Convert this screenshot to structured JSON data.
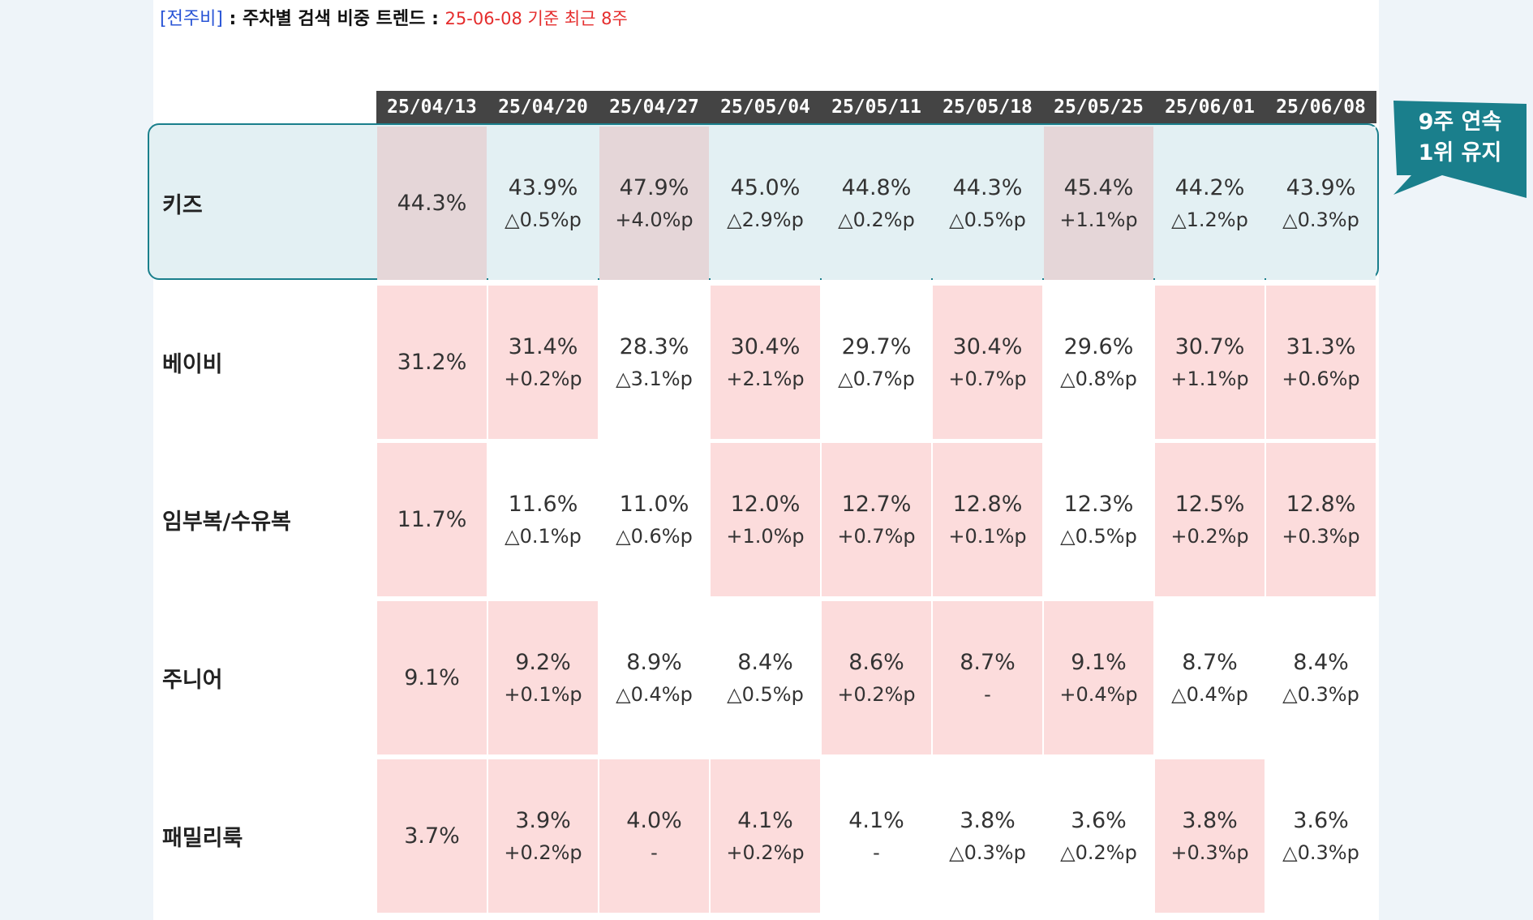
{
  "heading": {
    "tag": "[전주비]",
    "sep1": " : ",
    "title": "주차별 검색 비중 트렌드",
    "sep2": " : ",
    "basis": "25-06-08 기준 최근 8주"
  },
  "columns": [
    "25/04/13",
    "25/04/20",
    "25/04/27",
    "25/05/04",
    "25/05/11",
    "25/05/18",
    "25/05/25",
    "25/06/01",
    "25/06/08"
  ],
  "rows": [
    {
      "label": "키즈",
      "cells": [
        {
          "pct": "44.3%",
          "chg": ""
        },
        {
          "pct": "43.9%",
          "chg": "△0.5%p"
        },
        {
          "pct": "47.9%",
          "chg": "+4.0%p"
        },
        {
          "pct": "45.0%",
          "chg": "△2.9%p"
        },
        {
          "pct": "44.8%",
          "chg": "△0.2%p"
        },
        {
          "pct": "44.3%",
          "chg": "△0.5%p"
        },
        {
          "pct": "45.4%",
          "chg": "+1.1%p"
        },
        {
          "pct": "44.2%",
          "chg": "△1.2%p"
        },
        {
          "pct": "43.9%",
          "chg": "△0.3%p"
        }
      ]
    },
    {
      "label": "베이비",
      "cells": [
        {
          "pct": "31.2%",
          "chg": ""
        },
        {
          "pct": "31.4%",
          "chg": "+0.2%p"
        },
        {
          "pct": "28.3%",
          "chg": "△3.1%p"
        },
        {
          "pct": "30.4%",
          "chg": "+2.1%p"
        },
        {
          "pct": "29.7%",
          "chg": "△0.7%p"
        },
        {
          "pct": "30.4%",
          "chg": "+0.7%p"
        },
        {
          "pct": "29.6%",
          "chg": "△0.8%p"
        },
        {
          "pct": "30.7%",
          "chg": "+1.1%p"
        },
        {
          "pct": "31.3%",
          "chg": "+0.6%p"
        }
      ]
    },
    {
      "label": "임부복/수유복",
      "cells": [
        {
          "pct": "11.7%",
          "chg": ""
        },
        {
          "pct": "11.6%",
          "chg": "△0.1%p"
        },
        {
          "pct": "11.0%",
          "chg": "△0.6%p"
        },
        {
          "pct": "12.0%",
          "chg": "+1.0%p"
        },
        {
          "pct": "12.7%",
          "chg": "+0.7%p"
        },
        {
          "pct": "12.8%",
          "chg": "+0.1%p"
        },
        {
          "pct": "12.3%",
          "chg": "△0.5%p"
        },
        {
          "pct": "12.5%",
          "chg": "+0.2%p"
        },
        {
          "pct": "12.8%",
          "chg": "+0.3%p"
        }
      ]
    },
    {
      "label": "주니어",
      "cells": [
        {
          "pct": "9.1%",
          "chg": ""
        },
        {
          "pct": "9.2%",
          "chg": "+0.1%p"
        },
        {
          "pct": "8.9%",
          "chg": "△0.4%p"
        },
        {
          "pct": "8.4%",
          "chg": "△0.5%p"
        },
        {
          "pct": "8.6%",
          "chg": "+0.2%p"
        },
        {
          "pct": "8.7%",
          "chg": "-"
        },
        {
          "pct": "9.1%",
          "chg": "+0.4%p"
        },
        {
          "pct": "8.7%",
          "chg": "△0.4%p"
        },
        {
          "pct": "8.4%",
          "chg": "△0.3%p"
        }
      ]
    },
    {
      "label": "패밀리룩",
      "cells": [
        {
          "pct": "3.7%",
          "chg": ""
        },
        {
          "pct": "3.9%",
          "chg": "+0.2%p"
        },
        {
          "pct": "4.0%",
          "chg": "-"
        },
        {
          "pct": "4.1%",
          "chg": "+0.2%p"
        },
        {
          "pct": "4.1%",
          "chg": "-"
        },
        {
          "pct": "3.8%",
          "chg": "△0.3%p"
        },
        {
          "pct": "3.6%",
          "chg": "△0.2%p"
        },
        {
          "pct": "3.8%",
          "chg": "+0.3%p"
        },
        {
          "pct": "3.6%",
          "chg": "△0.3%p"
        }
      ]
    }
  ],
  "callout": {
    "line1": "9주 연속",
    "line2": "1위 유지"
  },
  "colors": {
    "header_bg": "#444444",
    "highlight_pink": "#fcdcdc",
    "kids_blue": "#e3f0f3",
    "kids_pink": "#e5d6d8",
    "frame_teal": "#1a7f8c",
    "callout_teal": "#1a7f8c",
    "tag_blue": "#2a55d6",
    "date_red": "#e52d2d"
  }
}
